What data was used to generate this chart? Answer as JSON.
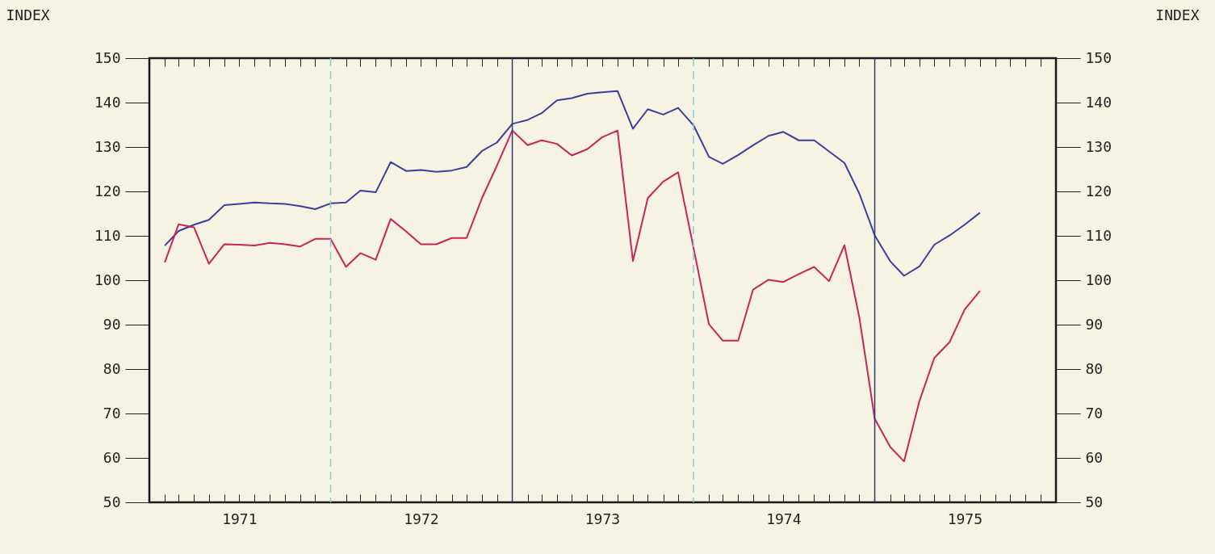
{
  "chart_data": {
    "type": "line",
    "ylabel": "INDEX",
    "y2label": "INDEX",
    "x": [
      "1971-02",
      "1971-03",
      "1971-04",
      "1971-05",
      "1971-06",
      "1971-07",
      "1971-08",
      "1971-09",
      "1971-10",
      "1971-11",
      "1971-12",
      "1972-01",
      "1972-02",
      "1972-03",
      "1972-04",
      "1972-05",
      "1972-06",
      "1972-07",
      "1972-08",
      "1972-09",
      "1972-10",
      "1972-11",
      "1972-12",
      "1973-01",
      "1973-02",
      "1973-03",
      "1973-04",
      "1973-05",
      "1973-06",
      "1973-07",
      "1973-08",
      "1973-09",
      "1973-10",
      "1973-11",
      "1973-12",
      "1974-01",
      "1974-02",
      "1974-03",
      "1974-04",
      "1974-05",
      "1974-06",
      "1974-07",
      "1974-08",
      "1974-09",
      "1974-10",
      "1974-11",
      "1974-12",
      "1975-01",
      "1975-02",
      "1975-03",
      "1975-04",
      "1975-05",
      "1975-06",
      "1975-07",
      "1975-08"
    ],
    "series": [
      {
        "color": "#3c3f9a",
        "values": [
          107.8,
          111.1,
          112.5,
          113.6,
          116.9,
          117.2,
          117.5,
          117.3,
          117.2,
          116.7,
          116.0,
          117.3,
          117.5,
          120.2,
          119.8,
          126.6,
          124.6,
          124.8,
          124.4,
          124.7,
          125.5,
          129.1,
          131.0,
          135.2,
          136.1,
          137.6,
          140.5,
          141.0,
          142.0,
          142.3,
          142.6,
          134.1,
          138.5,
          137.3,
          138.8,
          134.9,
          127.8,
          126.2,
          128.2,
          130.4,
          132.5,
          133.4,
          131.5,
          131.5,
          129.0,
          126.4,
          119.5,
          110.1,
          104.3,
          101.0,
          103.1,
          108.0,
          110.1,
          112.5,
          115.2
        ]
      },
      {
        "color": "#c8245a",
        "values": [
          104.0,
          112.6,
          111.9,
          103.7,
          108.1,
          108.0,
          107.8,
          108.4,
          108.1,
          107.6,
          109.3,
          109.3,
          103.0,
          106.1,
          104.6,
          113.8,
          111.0,
          108.1,
          108.1,
          109.5,
          109.5,
          118.5,
          125.8,
          133.7,
          130.4,
          131.5,
          130.7,
          128.1,
          129.5,
          132.2,
          133.7,
          104.3,
          118.5,
          122.2,
          124.3,
          107.3,
          90.1,
          86.4,
          86.4,
          97.9,
          100.1,
          99.6,
          101.4,
          103.0,
          99.8,
          107.9,
          91.6,
          68.8,
          62.5,
          59.2,
          72.8,
          82.5,
          86.1,
          93.4,
          97.6
        ]
      }
    ],
    "xlim": [
      "1971-01",
      "1976-01"
    ],
    "xticks": [
      {
        "value": "1971-02",
        "label": null
      },
      {
        "value": "1971-03",
        "label": null
      },
      {
        "value": "1971-04",
        "label": null
      },
      {
        "value": "1971-05",
        "label": null
      },
      {
        "value": "1971-06",
        "label": null
      },
      {
        "value": "1971-07",
        "label": "1971"
      },
      {
        "value": "1971-08",
        "label": null
      },
      {
        "value": "1971-09",
        "label": null
      },
      {
        "value": "1971-10",
        "label": null
      },
      {
        "value": "1971-11",
        "label": null
      },
      {
        "value": "1971-12",
        "label": null
      },
      {
        "value": "1972-02",
        "label": null
      },
      {
        "value": "1972-03",
        "label": null
      },
      {
        "value": "1972-04",
        "label": null
      },
      {
        "value": "1972-05",
        "label": null
      },
      {
        "value": "1972-06",
        "label": null
      },
      {
        "value": "1972-07",
        "label": "1972"
      },
      {
        "value": "1972-08",
        "label": null
      },
      {
        "value": "1972-09",
        "label": null
      },
      {
        "value": "1972-10",
        "label": null
      },
      {
        "value": "1972-11",
        "label": null
      },
      {
        "value": "1972-12",
        "label": null
      },
      {
        "value": "1973-02",
        "label": null
      },
      {
        "value": "1973-03",
        "label": null
      },
      {
        "value": "1973-04",
        "label": null
      },
      {
        "value": "1973-05",
        "label": null
      },
      {
        "value": "1973-06",
        "label": null
      },
      {
        "value": "1973-07",
        "label": "1973"
      },
      {
        "value": "1973-08",
        "label": null
      },
      {
        "value": "1973-09",
        "label": null
      },
      {
        "value": "1973-10",
        "label": null
      },
      {
        "value": "1973-11",
        "label": null
      },
      {
        "value": "1973-12",
        "label": null
      },
      {
        "value": "1974-02",
        "label": null
      },
      {
        "value": "1974-03",
        "label": null
      },
      {
        "value": "1974-04",
        "label": null
      },
      {
        "value": "1974-05",
        "label": null
      },
      {
        "value": "1974-06",
        "label": null
      },
      {
        "value": "1974-07",
        "label": "1974"
      },
      {
        "value": "1974-08",
        "label": null
      },
      {
        "value": "1974-09",
        "label": null
      },
      {
        "value": "1974-10",
        "label": null
      },
      {
        "value": "1974-11",
        "label": null
      },
      {
        "value": "1974-12",
        "label": null
      },
      {
        "value": "1975-02",
        "label": null
      },
      {
        "value": "1975-03",
        "label": null
      },
      {
        "value": "1975-04",
        "label": null
      },
      {
        "value": "1975-05",
        "label": null
      },
      {
        "value": "1975-06",
        "label": null
      },
      {
        "value": "1975-07",
        "label": "1975"
      },
      {
        "value": "1975-08",
        "label": null
      },
      {
        "value": "1975-09",
        "label": null
      },
      {
        "value": "1975-10",
        "label": null
      },
      {
        "value": "1975-11",
        "label": null
      },
      {
        "value": "1975-12",
        "label": null
      }
    ],
    "ylim": [
      50,
      150
    ],
    "yticks": [
      50,
      60,
      70,
      80,
      90,
      100,
      110,
      120,
      130,
      140,
      150
    ],
    "y2lim": [
      50,
      150
    ],
    "y2ticks": [
      50,
      60,
      70,
      80,
      90,
      100,
      110,
      120,
      130,
      140,
      150
    ],
    "ref_lines": [
      {
        "axis": "x",
        "value": "1972-01",
        "label": null,
        "color": "#8ccad8",
        "line_style": "dashed"
      },
      {
        "axis": "x",
        "value": "1973-01",
        "label": null,
        "color": "#2b3a66",
        "line_style": "solid"
      },
      {
        "axis": "x",
        "value": "1974-01",
        "label": null,
        "color": "#8ccad8",
        "line_style": "dashed"
      },
      {
        "axis": "x",
        "value": "1975-01",
        "label": null,
        "color": "#2b3a66",
        "line_style": "solid"
      }
    ]
  }
}
